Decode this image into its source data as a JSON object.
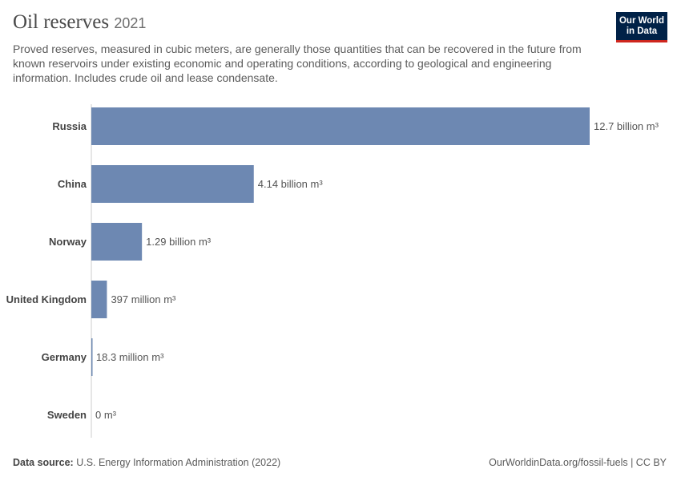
{
  "header": {
    "title": "Oil reserves",
    "year": "2021",
    "subtitle": "Proved reserves, measured in cubic meters, are generally those quantities that can be recovered in the future from known reservoirs under existing economic and operating conditions, according to geological and engineering information. Includes crude oil and lease condensate."
  },
  "logo": {
    "line1": "Our World",
    "line2": "in Data"
  },
  "footer": {
    "source_label": "Data source:",
    "source_text": "U.S. Energy Information Administration (2022)",
    "url": "OurWorldinData.org/fossil-fuels | CC BY"
  },
  "colors": {
    "bar": "#6d88b2",
    "axis": "#cccccc",
    "label": "#444444"
  },
  "chart_data": {
    "type": "bar",
    "orientation": "horizontal",
    "unit": "m³",
    "categories": [
      "Russia",
      "China",
      "Norway",
      "United Kingdom",
      "Germany",
      "Sweden"
    ],
    "values": [
      12700000000,
      4140000000,
      1290000000,
      397000000,
      18300000,
      0
    ],
    "value_labels": [
      "12.7 billion m³",
      "4.14 billion m³",
      "1.29 billion m³",
      "397 million m³",
      "18.3 million m³",
      "0 m³"
    ],
    "xlim": [
      0,
      12700000000
    ],
    "grid": false
  }
}
